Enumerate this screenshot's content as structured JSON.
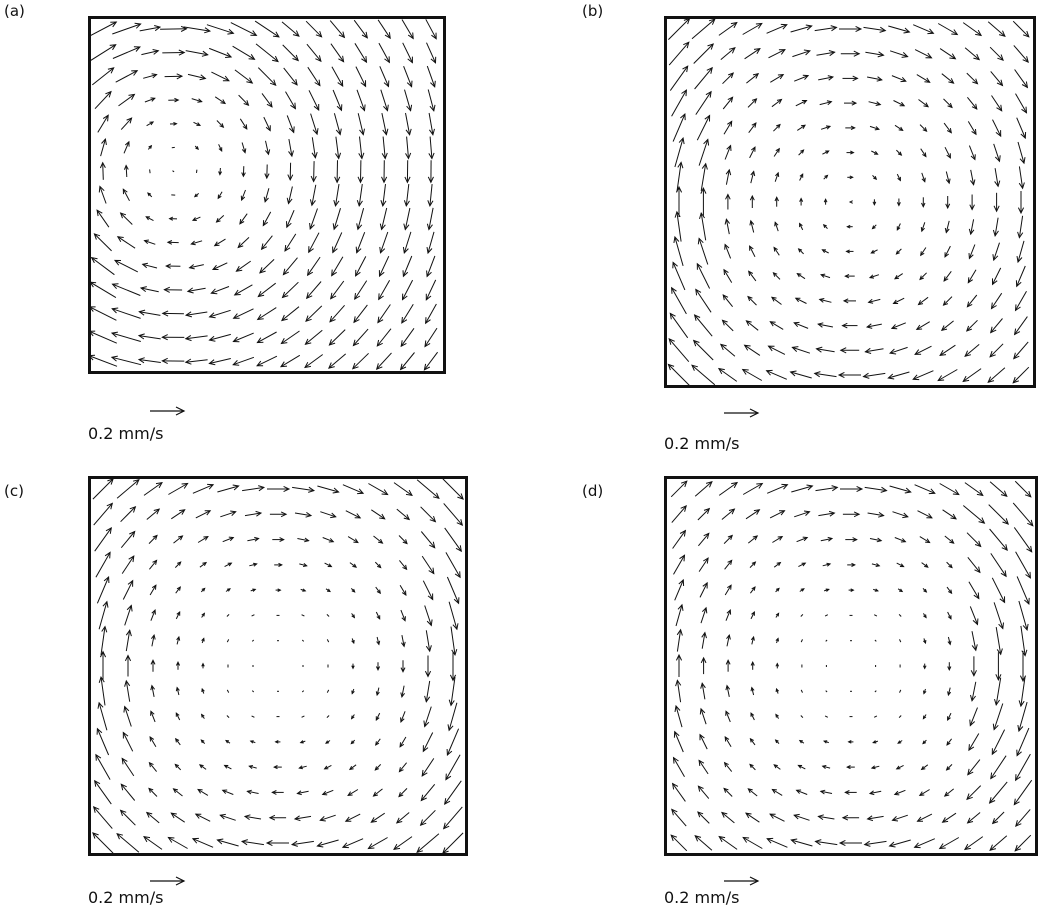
{
  "figure": {
    "panels": [
      {
        "id": "a",
        "letter": "(a)",
        "scale_label": "0.2 mm/s",
        "scale_value_mm_s": 0.2,
        "pattern": "off-center-vortex"
      },
      {
        "id": "b",
        "letter": "(b)",
        "scale_label": "0.2 mm/s",
        "scale_value_mm_s": 0.2,
        "pattern": "wall-jet-vortex"
      },
      {
        "id": "c",
        "letter": "(c)",
        "scale_label": "0.2 mm/s",
        "scale_value_mm_s": 0.2,
        "pattern": "symmetric-weak-core"
      },
      {
        "id": "d",
        "letter": "(d)",
        "scale_label": "0.2 mm/s",
        "scale_value_mm_s": 0.2,
        "pattern": "right-wall-jet"
      }
    ],
    "arrow_color": "#111111"
  }
}
